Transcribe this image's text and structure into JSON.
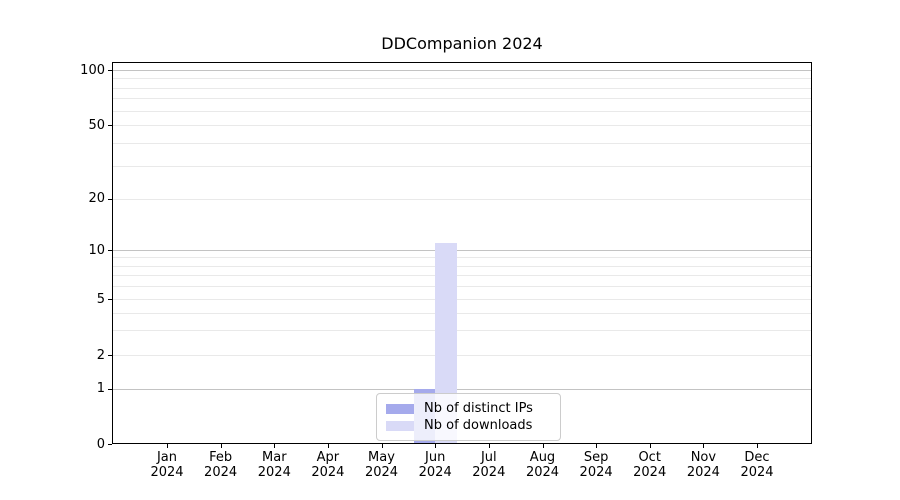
{
  "chart_data": {
    "type": "bar",
    "title": "DDCompanion 2024",
    "categories": [
      "Jan 2024",
      "Feb 2024",
      "Mar 2024",
      "Apr 2024",
      "May 2024",
      "Jun 2024",
      "Jul 2024",
      "Aug 2024",
      "Sep 2024",
      "Oct 2024",
      "Nov 2024",
      "Dec 2024"
    ],
    "series": [
      {
        "name": "Nb of distinct IPs",
        "color": "#a5aaec",
        "values": [
          0,
          0,
          0,
          0,
          0,
          1,
          0,
          0,
          0,
          0,
          0,
          0
        ]
      },
      {
        "name": "Nb of downloads",
        "color": "#d9daf7",
        "values": [
          0,
          0,
          0,
          0,
          0,
          11,
          0,
          0,
          0,
          0,
          0,
          0
        ]
      }
    ],
    "xlabel": "",
    "ylabel": "",
    "yscale": "symlog",
    "ylim": [
      0,
      110
    ],
    "yticks": [
      0,
      1,
      2,
      5,
      10,
      20,
      50,
      100
    ],
    "minor_yticks": [
      2,
      3,
      4,
      5,
      6,
      7,
      8,
      9,
      20,
      30,
      40,
      50,
      60,
      70,
      80,
      90
    ],
    "major_grid_yticks": [
      1,
      10,
      100
    ],
    "grid": true,
    "legend_position": "lower center",
    "colors": {
      "major_grid": "#c3c3c3",
      "minor_grid": "#e9e9e9",
      "axis": "#000000",
      "background": "#ffffff",
      "text": "#000000"
    }
  }
}
